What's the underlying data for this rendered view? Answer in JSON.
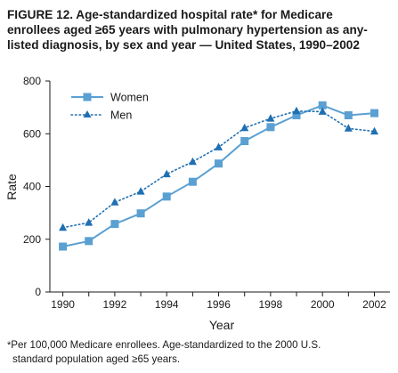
{
  "figure": {
    "title_line1": "FIGURE 12. Age-standardized hospital rate* for Medicare",
    "title_line2": "enrollees aged ≥65 years with pulmonary hypertension as any-",
    "title_line3": "listed diagnosis, by sex and year — United States, 1990–2002",
    "footnote_mark": "*",
    "footnote_line1": "Per 100,000 Medicare enrollees. Age-standardized to the 2000 U.S.",
    "footnote_line2": "standard population aged ≥65 years."
  },
  "chart_data": {
    "type": "line",
    "xlabel": "Year",
    "ylabel": "Rate",
    "ylim": [
      0,
      800
    ],
    "yticks": [
      0,
      200,
      400,
      600,
      800
    ],
    "xticks": [
      1990,
      1992,
      1994,
      1996,
      1998,
      2000,
      2002
    ],
    "grid": false,
    "legend_position": "top-left",
    "x": [
      1990,
      1991,
      1992,
      1993,
      1994,
      1995,
      1996,
      1997,
      1998,
      1999,
      2000,
      2001,
      2002
    ],
    "series": [
      {
        "name": "Women",
        "marker": "square",
        "line_style": "solid",
        "color": "#5aa0d2",
        "values": [
          172,
          193,
          258,
          298,
          362,
          418,
          487,
          572,
          625,
          670,
          708,
          670,
          678
        ]
      },
      {
        "name": "Men",
        "marker": "triangle",
        "line_style": "dotted",
        "color": "#1f6fb2",
        "values": [
          244,
          263,
          340,
          381,
          447,
          494,
          549,
          622,
          658,
          686,
          684,
          620,
          609
        ]
      }
    ]
  }
}
